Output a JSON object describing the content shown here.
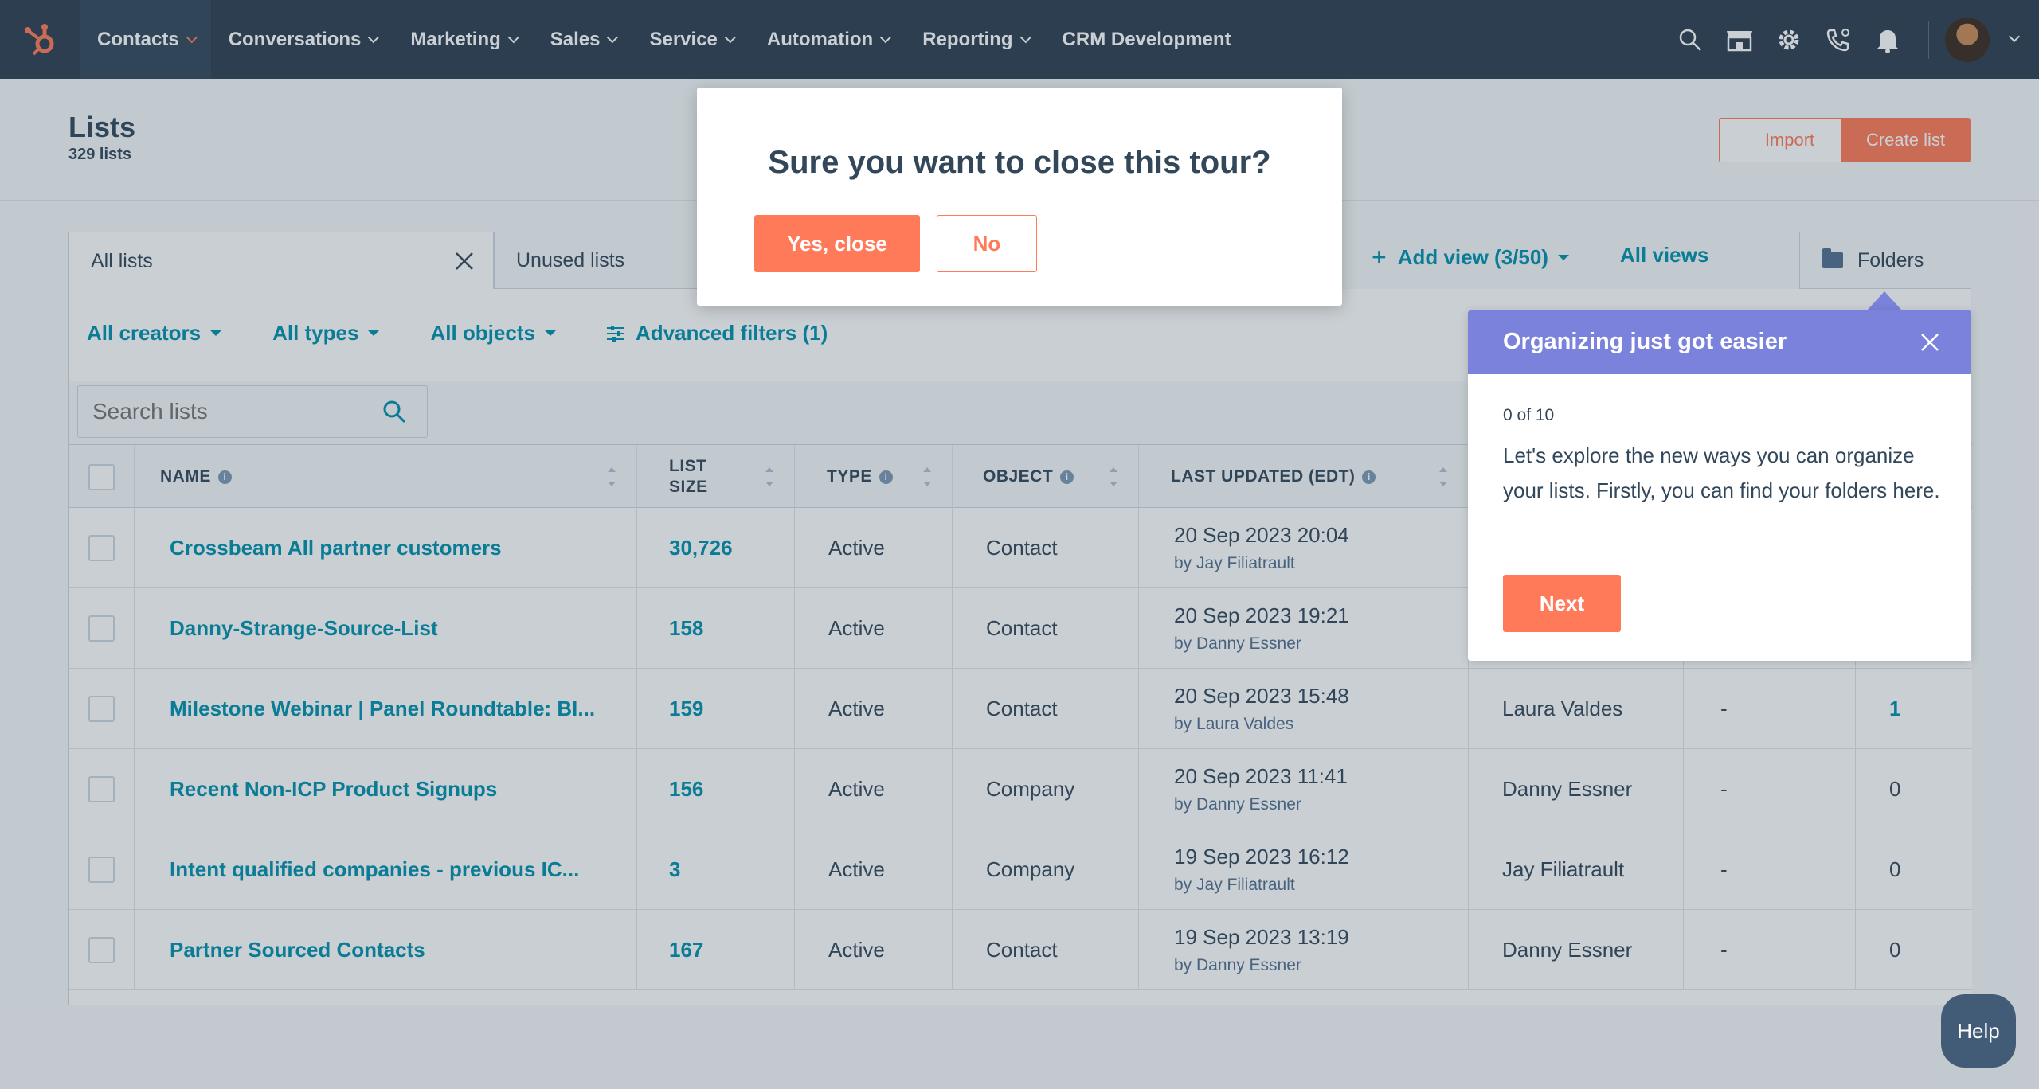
{
  "nav": {
    "items": [
      {
        "label": "Contacts",
        "active": true
      },
      {
        "label": "Conversations"
      },
      {
        "label": "Marketing"
      },
      {
        "label": "Sales"
      },
      {
        "label": "Service"
      },
      {
        "label": "Automation"
      },
      {
        "label": "Reporting"
      },
      {
        "label": "CRM Development",
        "no_chevron": true
      }
    ],
    "icons": [
      "search-icon",
      "marketplace-icon",
      "gear-icon",
      "phone-icon",
      "bell-icon"
    ]
  },
  "header": {
    "title": "Lists",
    "subtitle": "329 lists",
    "import_label": "Import",
    "create_label": "Create list"
  },
  "views": {
    "tab_all": "All lists",
    "tab_unused": "Unused lists",
    "add_view": "Add view (3/50)",
    "all_views": "All views",
    "folders": "Folders"
  },
  "filters": {
    "creators": "All creators",
    "types": "All types",
    "objects": "All objects",
    "advanced": "Advanced filters (1)"
  },
  "search": {
    "placeholder": "Search lists"
  },
  "table": {
    "headers": {
      "name": "NAME",
      "list_size_1": "LIST",
      "list_size_2": "SIZE",
      "type": "TYPE",
      "object": "OBJECT",
      "last_updated": "LAST UPDATED (EDT)"
    },
    "rows": [
      {
        "name": "Crossbeam All partner customers",
        "size": "30,726",
        "type": "Active",
        "object": "Contact",
        "updated": "20 Sep 2023 20:04",
        "by": "by Jay Filiatrault",
        "creator": "",
        "folder": "",
        "used": ""
      },
      {
        "name": "Danny-Strange-Source-List",
        "size": "158",
        "type": "Active",
        "object": "Contact",
        "updated": "20 Sep 2023 19:21",
        "by": "by Danny Essner",
        "creator": "",
        "folder": "",
        "used": ""
      },
      {
        "name": "Milestone Webinar | Panel Roundtable: Bl...",
        "size": "159",
        "type": "Active",
        "object": "Contact",
        "updated": "20 Sep 2023 15:48",
        "by": "by Laura Valdes",
        "creator": "Laura Valdes",
        "folder": "-",
        "used": "1"
      },
      {
        "name": "Recent Non-ICP Product Signups",
        "size": "156",
        "type": "Active",
        "object": "Company",
        "updated": "20 Sep 2023 11:41",
        "by": "by Danny Essner",
        "creator": "Danny Essner",
        "folder": "-",
        "used": "0"
      },
      {
        "name": "Intent qualified companies - previous IC...",
        "size": "3",
        "type": "Active",
        "object": "Company",
        "updated": "19 Sep 2023 16:12",
        "by": "by Jay Filiatrault",
        "creator": "Jay Filiatrault",
        "folder": "-",
        "used": "0"
      },
      {
        "name": "Partner Sourced Contacts",
        "size": "167",
        "type": "Active",
        "object": "Contact",
        "updated": "19 Sep 2023 13:19",
        "by": "by Danny Essner",
        "creator": "Danny Essner",
        "folder": "-",
        "used": "0"
      }
    ]
  },
  "modal": {
    "title": "Sure you want to close this tour?",
    "yes_label": "Yes, close",
    "no_label": "No"
  },
  "tour": {
    "title": "Organizing just got easier",
    "step": "0 of 10",
    "body": "Let's explore the new ways you can organize your lists. Firstly, you can find your folders here.",
    "next_label": "Next"
  },
  "help": {
    "label": "Help"
  },
  "colors": {
    "nav_bg": "#2d3e50",
    "accent": "#ff7a59",
    "link": "#0091ae",
    "tour_header": "#7a82db"
  }
}
